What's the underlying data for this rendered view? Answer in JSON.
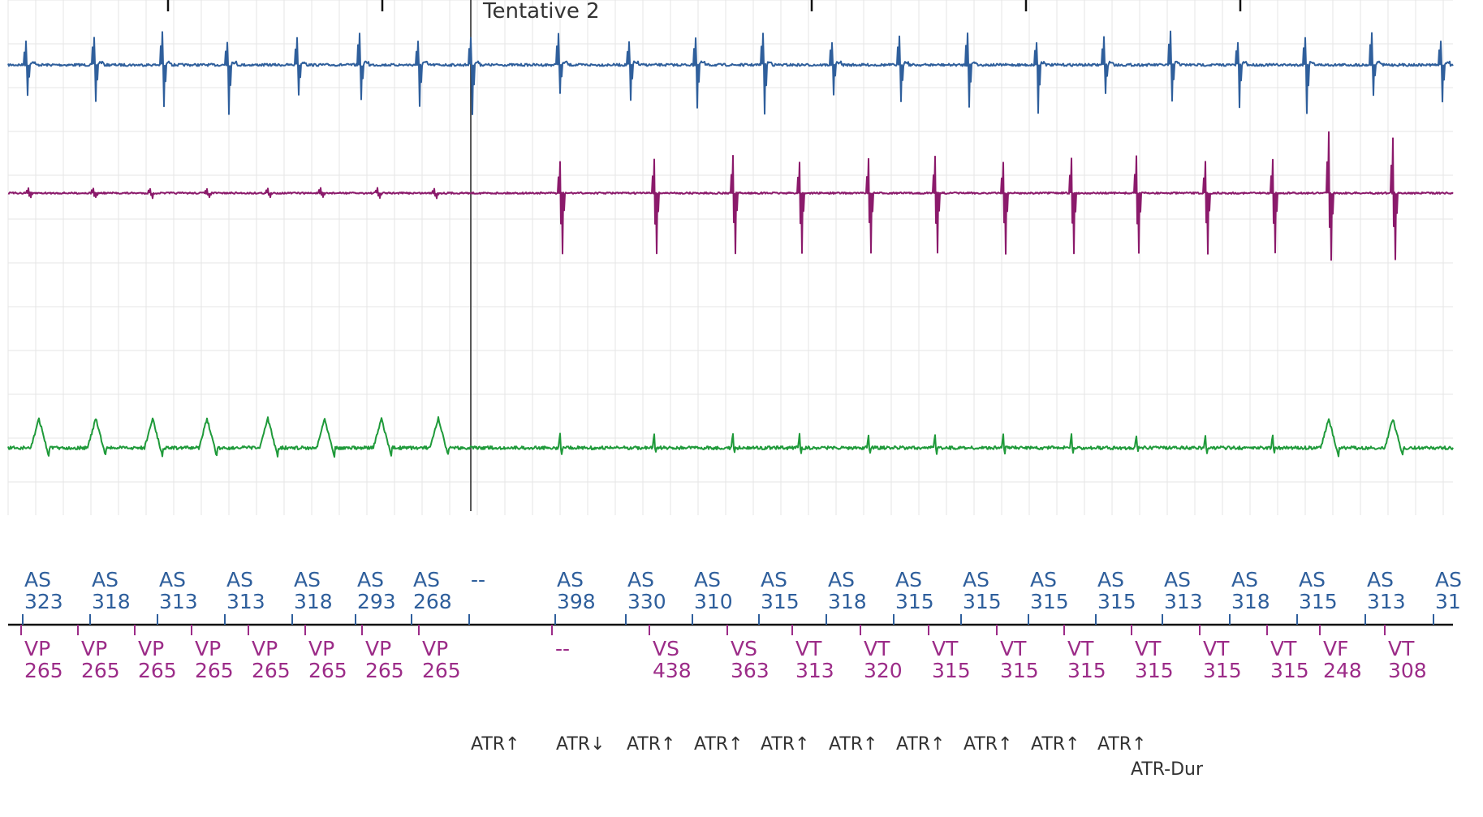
{
  "title": "Tentative 2",
  "colors": {
    "atrial": "#2f5f9c",
    "ventricular": "#8b1a6b",
    "shock": "#1f9a3a",
    "marker_ventricular": "#9c2c88",
    "grid": "#e6e6e6",
    "text": "#333333"
  },
  "chart_data": {
    "type": "line",
    "title": "Tentative 2",
    "atrial_marks": [
      {
        "label": "AS",
        "value": "323"
      },
      {
        "label": "AS",
        "value": "318"
      },
      {
        "label": "AS",
        "value": "313"
      },
      {
        "label": "AS",
        "value": "313"
      },
      {
        "label": "AS",
        "value": "318"
      },
      {
        "label": "AS",
        "value": "293"
      },
      {
        "label": "AS",
        "value": "268"
      },
      {
        "label": "--",
        "value": ""
      },
      {
        "label": "AS",
        "value": "398"
      },
      {
        "label": "AS",
        "value": "330"
      },
      {
        "label": "AS",
        "value": "310"
      },
      {
        "label": "AS",
        "value": "315"
      },
      {
        "label": "AS",
        "value": "318"
      },
      {
        "label": "AS",
        "value": "315"
      },
      {
        "label": "AS",
        "value": "315"
      },
      {
        "label": "AS",
        "value": "315"
      },
      {
        "label": "AS",
        "value": "315"
      },
      {
        "label": "AS",
        "value": "313"
      },
      {
        "label": "AS",
        "value": "318"
      },
      {
        "label": "AS",
        "value": "315"
      },
      {
        "label": "AS",
        "value": "313"
      },
      {
        "label": "AS",
        "value": "31"
      }
    ],
    "ventricular_marks": [
      {
        "label": "VP",
        "value": "265"
      },
      {
        "label": "VP",
        "value": "265"
      },
      {
        "label": "VP",
        "value": "265"
      },
      {
        "label": "VP",
        "value": "265"
      },
      {
        "label": "VP",
        "value": "265"
      },
      {
        "label": "VP",
        "value": "265"
      },
      {
        "label": "VP",
        "value": "265"
      },
      {
        "label": "VP",
        "value": "265"
      },
      {
        "label": "--",
        "value": ""
      },
      {
        "label": "VS",
        "value": "438"
      },
      {
        "label": "VS",
        "value": "363"
      },
      {
        "label": "VT",
        "value": "313"
      },
      {
        "label": "VT",
        "value": "320"
      },
      {
        "label": "VT",
        "value": "315"
      },
      {
        "label": "VT",
        "value": "315"
      },
      {
        "label": "VT",
        "value": "315"
      },
      {
        "label": "VT",
        "value": "315"
      },
      {
        "label": "VT",
        "value": "315"
      },
      {
        "label": "VT",
        "value": "315"
      },
      {
        "label": "VF",
        "value": "248"
      },
      {
        "label": "VT",
        "value": "308"
      }
    ],
    "episode_events": [
      "ATR↑",
      "ATR↓",
      "ATR↑",
      "ATR↑",
      "ATR↑",
      "ATR↑",
      "ATR↑",
      "ATR↑",
      "ATR↑",
      "ATR↑"
    ],
    "duration_event": "ATR-Dur"
  }
}
